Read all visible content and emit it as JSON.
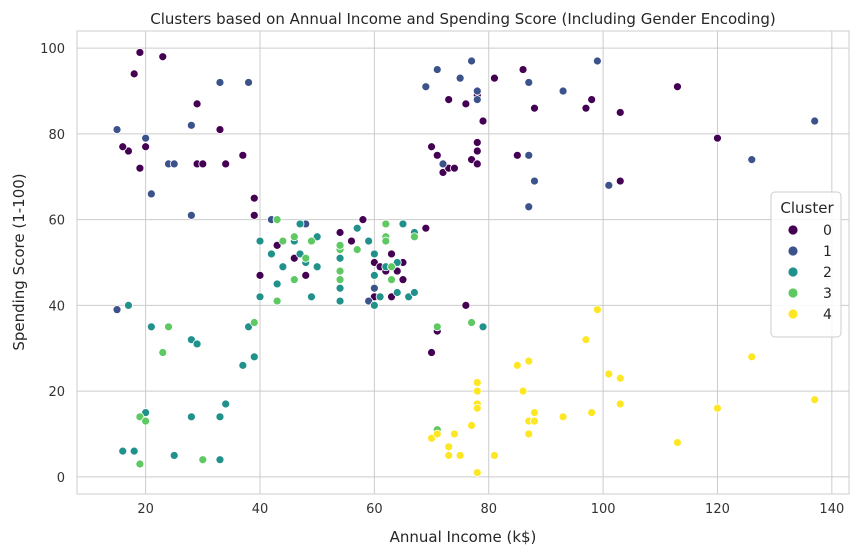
{
  "chart_data": {
    "type": "scatter",
    "title": "Clusters based on Annual Income and Spending Score (Including Gender Encoding)",
    "xlabel": "Annual Income (k$)",
    "ylabel": "Spending Score (1-100)",
    "xlim": [
      8,
      143
    ],
    "ylim": [
      -4,
      104
    ],
    "xticks": [
      20,
      40,
      60,
      80,
      100,
      120,
      140
    ],
    "yticks": [
      0,
      20,
      40,
      60,
      80,
      100
    ],
    "grid": true,
    "legend": {
      "title": "Cluster",
      "placement": "center-right"
    },
    "series": [
      {
        "name": "0",
        "color": "#440154",
        "points": [
          [
            19,
            99
          ],
          [
            18,
            94
          ],
          [
            23,
            98
          ],
          [
            29,
            87
          ],
          [
            17,
            76
          ],
          [
            16,
            77
          ],
          [
            20,
            77
          ],
          [
            19,
            72
          ],
          [
            29,
            73
          ],
          [
            30,
            73
          ],
          [
            33,
            81
          ],
          [
            34,
            73
          ],
          [
            37,
            75
          ],
          [
            39,
            65
          ],
          [
            39,
            61
          ],
          [
            40,
            47
          ],
          [
            43,
            54
          ],
          [
            46,
            51
          ],
          [
            48,
            47
          ],
          [
            54,
            57
          ],
          [
            56,
            55
          ],
          [
            58,
            60
          ],
          [
            60,
            50
          ],
          [
            62,
            48
          ],
          [
            63,
            52
          ],
          [
            64,
            48
          ],
          [
            65,
            50
          ],
          [
            65,
            46
          ],
          [
            66,
            42
          ],
          [
            60,
            42
          ],
          [
            63,
            42
          ],
          [
            61,
            49
          ],
          [
            69,
            58
          ],
          [
            70,
            29
          ],
          [
            71,
            34
          ],
          [
            76,
            40
          ],
          [
            70,
            77
          ],
          [
            71,
            75
          ],
          [
            72,
            71
          ],
          [
            73,
            72
          ],
          [
            74,
            72
          ],
          [
            73,
            88
          ],
          [
            76,
            87
          ],
          [
            77,
            74
          ],
          [
            78,
            76
          ],
          [
            78,
            78
          ],
          [
            78,
            73
          ],
          [
            78,
            89
          ],
          [
            79,
            83
          ],
          [
            81,
            93
          ],
          [
            85,
            75
          ],
          [
            86,
            95
          ],
          [
            88,
            86
          ],
          [
            97,
            86
          ],
          [
            98,
            88
          ],
          [
            103,
            85
          ],
          [
            103,
            69
          ],
          [
            113,
            91
          ],
          [
            120,
            79
          ]
        ]
      },
      {
        "name": "1",
        "color": "#3b528b",
        "points": [
          [
            15,
            81
          ],
          [
            15,
            39
          ],
          [
            20,
            79
          ],
          [
            21,
            66
          ],
          [
            24,
            73
          ],
          [
            25,
            73
          ],
          [
            28,
            82
          ],
          [
            28,
            61
          ],
          [
            33,
            92
          ],
          [
            38,
            92
          ],
          [
            42,
            60
          ],
          [
            48,
            59
          ],
          [
            59,
            41
          ],
          [
            60,
            44
          ],
          [
            69,
            91
          ],
          [
            71,
            95
          ],
          [
            72,
            73
          ],
          [
            75,
            93
          ],
          [
            77,
            97
          ],
          [
            78,
            90
          ],
          [
            78,
            88
          ],
          [
            87,
            92
          ],
          [
            87,
            75
          ],
          [
            87,
            63
          ],
          [
            88,
            69
          ],
          [
            93,
            90
          ],
          [
            99,
            97
          ],
          [
            101,
            68
          ],
          [
            126,
            74
          ],
          [
            137,
            83
          ]
        ]
      },
      {
        "name": "2",
        "color": "#21918c",
        "points": [
          [
            16,
            6
          ],
          [
            17,
            40
          ],
          [
            18,
            6
          ],
          [
            20,
            15
          ],
          [
            21,
            35
          ],
          [
            25,
            5
          ],
          [
            28,
            32
          ],
          [
            28,
            14
          ],
          [
            29,
            31
          ],
          [
            33,
            14
          ],
          [
            33,
            4
          ],
          [
            34,
            17
          ],
          [
            37,
            26
          ],
          [
            38,
            35
          ],
          [
            39,
            28
          ],
          [
            40,
            55
          ],
          [
            40,
            42
          ],
          [
            42,
            52
          ],
          [
            43,
            45
          ],
          [
            43,
            60
          ],
          [
            44,
            49
          ],
          [
            46,
            55
          ],
          [
            47,
            52
          ],
          [
            47,
            59
          ],
          [
            48,
            50
          ],
          [
            49,
            42
          ],
          [
            50,
            49
          ],
          [
            50,
            56
          ],
          [
            54,
            41
          ],
          [
            54,
            44
          ],
          [
            54,
            51
          ],
          [
            57,
            58
          ],
          [
            59,
            55
          ],
          [
            60,
            52
          ],
          [
            60,
            47
          ],
          [
            60,
            40
          ],
          [
            61,
            42
          ],
          [
            62,
            49
          ],
          [
            64,
            50
          ],
          [
            64,
            43
          ],
          [
            65,
            59
          ],
          [
            66,
            42
          ],
          [
            67,
            57
          ],
          [
            67,
            43
          ],
          [
            79,
            35
          ]
        ]
      },
      {
        "name": "3",
        "color": "#5ec962",
        "points": [
          [
            19,
            14
          ],
          [
            19,
            3
          ],
          [
            20,
            13
          ],
          [
            23,
            29
          ],
          [
            24,
            35
          ],
          [
            30,
            4
          ],
          [
            39,
            36
          ],
          [
            43,
            60
          ],
          [
            43,
            41
          ],
          [
            44,
            55
          ],
          [
            46,
            56
          ],
          [
            46,
            46
          ],
          [
            48,
            51
          ],
          [
            49,
            55
          ],
          [
            54,
            48
          ],
          [
            54,
            46
          ],
          [
            54,
            53
          ],
          [
            54,
            54
          ],
          [
            57,
            53
          ],
          [
            62,
            56
          ],
          [
            62,
            59
          ],
          [
            62,
            55
          ],
          [
            63,
            46
          ],
          [
            63,
            49
          ],
          [
            67,
            56
          ],
          [
            71,
            35
          ],
          [
            71,
            11
          ],
          [
            77,
            36
          ]
        ]
      },
      {
        "name": "4",
        "color": "#fde725",
        "points": [
          [
            70,
            9
          ],
          [
            71,
            10
          ],
          [
            73,
            7
          ],
          [
            73,
            5
          ],
          [
            74,
            10
          ],
          [
            75,
            5
          ],
          [
            77,
            12
          ],
          [
            78,
            22
          ],
          [
            78,
            20
          ],
          [
            78,
            17
          ],
          [
            78,
            16
          ],
          [
            78,
            1
          ],
          [
            81,
            5
          ],
          [
            85,
            26
          ],
          [
            86,
            20
          ],
          [
            87,
            27
          ],
          [
            87,
            13
          ],
          [
            87,
            10
          ],
          [
            88,
            13
          ],
          [
            88,
            15
          ],
          [
            93,
            14
          ],
          [
            97,
            32
          ],
          [
            98,
            15
          ],
          [
            99,
            39
          ],
          [
            101,
            24
          ],
          [
            103,
            23
          ],
          [
            103,
            17
          ],
          [
            113,
            8
          ],
          [
            120,
            16
          ],
          [
            126,
            28
          ],
          [
            137,
            18
          ]
        ]
      }
    ]
  }
}
